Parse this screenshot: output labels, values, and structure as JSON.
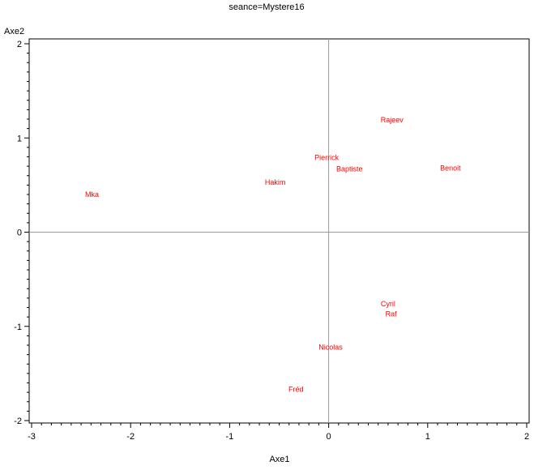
{
  "chart_data": {
    "type": "scatter",
    "title": "seance=Mystere16",
    "xlabel": "Axe1",
    "ylabel": "Axe2",
    "xlim": [
      -3,
      2
    ],
    "ylim": [
      -2,
      2
    ],
    "xticks": [
      "-3",
      "-2",
      "-1",
      "0",
      "1",
      "2"
    ],
    "yticks": [
      "-2",
      "-1",
      "0",
      "1",
      "2"
    ],
    "reference_lines": {
      "x": 0,
      "y": 0
    },
    "label_color": "#ff0000",
    "points": [
      {
        "label": "Rajeev",
        "x": 0.64,
        "y": 1.19
      },
      {
        "label": "Pierrick",
        "x": -0.02,
        "y": 0.79
      },
      {
        "label": "Baptiste",
        "x": 0.21,
        "y": 0.67
      },
      {
        "label": "Benoit",
        "x": 1.23,
        "y": 0.68
      },
      {
        "label": "Hakim",
        "x": -0.54,
        "y": 0.53
      },
      {
        "label": "Mka",
        "x": -2.39,
        "y": 0.4
      },
      {
        "label": "Cyril",
        "x": 0.6,
        "y": -0.76
      },
      {
        "label": "Raf",
        "x": 0.63,
        "y": -0.87
      },
      {
        "label": "Nicolas",
        "x": 0.02,
        "y": -1.22
      },
      {
        "label": "Fréd",
        "x": -0.33,
        "y": -1.67
      }
    ]
  }
}
